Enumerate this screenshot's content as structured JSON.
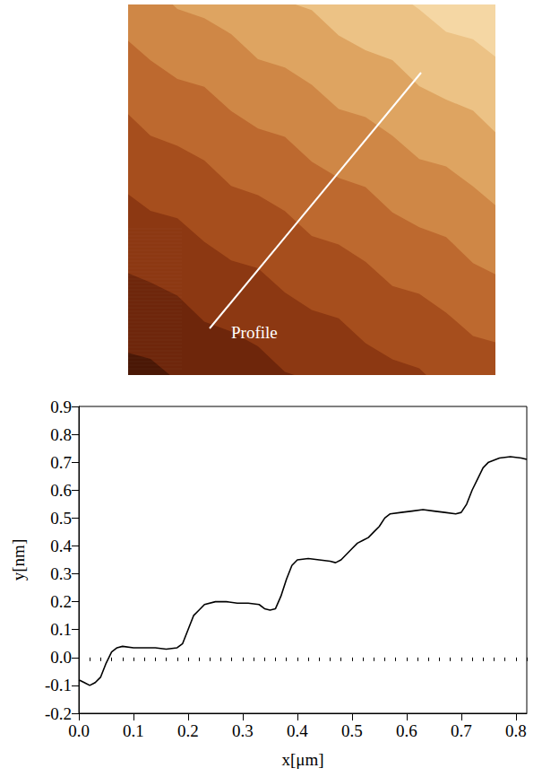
{
  "image_label": "Profile",
  "chart_data": {
    "type": "line",
    "x_label": "x[μm]",
    "y_label": "y[nm]",
    "x": [
      0.0,
      0.01,
      0.02,
      0.03,
      0.04,
      0.05,
      0.06,
      0.07,
      0.08,
      0.1,
      0.12,
      0.14,
      0.16,
      0.18,
      0.19,
      0.2,
      0.21,
      0.22,
      0.23,
      0.25,
      0.27,
      0.29,
      0.31,
      0.33,
      0.34,
      0.35,
      0.36,
      0.37,
      0.38,
      0.39,
      0.4,
      0.42,
      0.44,
      0.46,
      0.47,
      0.48,
      0.49,
      0.5,
      0.51,
      0.52,
      0.53,
      0.54,
      0.55,
      0.56,
      0.57,
      0.59,
      0.61,
      0.63,
      0.65,
      0.67,
      0.69,
      0.7,
      0.71,
      0.72,
      0.73,
      0.74,
      0.75,
      0.77,
      0.79,
      0.81,
      0.82
    ],
    "values": [
      -0.08,
      -0.09,
      -0.1,
      -0.09,
      -0.07,
      -0.02,
      0.02,
      0.035,
      0.04,
      0.035,
      0.035,
      0.035,
      0.03,
      0.035,
      0.05,
      0.1,
      0.15,
      0.17,
      0.19,
      0.2,
      0.2,
      0.195,
      0.195,
      0.19,
      0.175,
      0.17,
      0.175,
      0.22,
      0.28,
      0.33,
      0.35,
      0.355,
      0.35,
      0.345,
      0.34,
      0.35,
      0.37,
      0.39,
      0.41,
      0.42,
      0.43,
      0.45,
      0.47,
      0.5,
      0.515,
      0.52,
      0.525,
      0.53,
      0.525,
      0.52,
      0.515,
      0.52,
      0.55,
      0.6,
      0.64,
      0.68,
      0.7,
      0.715,
      0.72,
      0.715,
      0.71
    ],
    "color": "#000000",
    "xlim": [
      0,
      0.82
    ],
    "xticks": [
      {
        "value": 0,
        "label": "0.0"
      },
      0.1,
      0.2,
      0.3,
      0.4,
      0.5,
      0.6,
      0.7,
      0.8
    ],
    "ylim": [
      -0.2,
      0.9
    ],
    "yticks": [
      -0.2,
      -0.1,
      {
        "value": 0,
        "label": "0.0"
      },
      0.1,
      0.2,
      0.3,
      0.4,
      0.5,
      0.6,
      0.7,
      0.8,
      0.9
    ],
    "grid": false
  }
}
